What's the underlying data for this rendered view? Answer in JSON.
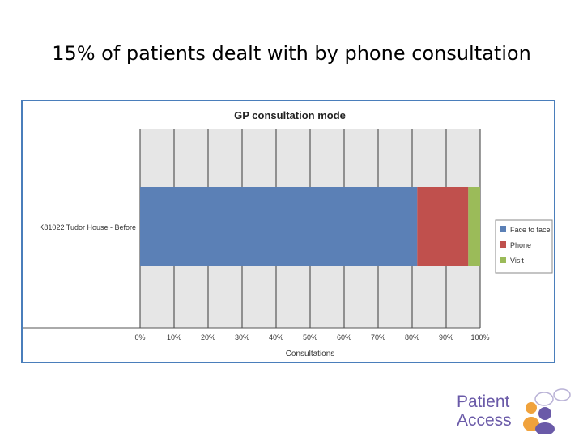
{
  "slide": {
    "title": "15% of patients dealt with by phone consultation"
  },
  "logo": {
    "line1": "Patient",
    "line2": "Access"
  },
  "colors": {
    "face_to_face": "#5b80b6",
    "phone": "#c0504d",
    "visit": "#9bbb59",
    "plot_background": "#e6e6e6",
    "frame_border": "#4a7ebb",
    "logo_text": "#6a5aa8"
  },
  "chart_data": {
    "type": "bar",
    "orientation": "horizontal",
    "stacked": "percent",
    "title": "GP consultation mode",
    "xlabel": "Consultations",
    "ylabel": "",
    "categories": [
      "K81022 Tudor House - Before"
    ],
    "series": [
      {
        "name": "Face to face",
        "values": [
          81.5
        ]
      },
      {
        "name": "Phone",
        "values": [
          15
        ]
      },
      {
        "name": "Visit",
        "values": [
          3.5
        ]
      }
    ],
    "xlim": [
      0,
      100
    ],
    "xticks": [
      "0%",
      "10%",
      "20%",
      "30%",
      "40%",
      "50%",
      "60%",
      "70%",
      "80%",
      "90%",
      "100%"
    ],
    "grid": "vertical",
    "legend": "right"
  }
}
